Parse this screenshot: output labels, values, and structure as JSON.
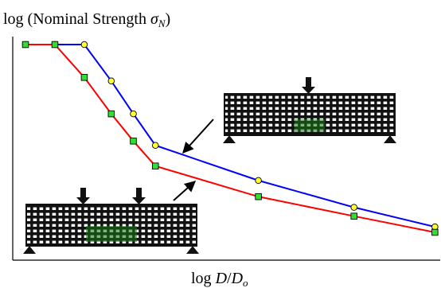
{
  "chart_data": {
    "type": "line",
    "ylabel_prefix": "log (Nominal Strength ",
    "ylabel_symbol": "σ",
    "ylabel_subscript": "N",
    "ylabel_suffix": ")",
    "xlabel_prefix": "log ",
    "xlabel_D": "D",
    "xlabel_slash": "/",
    "xlabel_Do": "D",
    "xlabel_Do_sub": "o",
    "grid": false,
    "legend": "none",
    "series": [
      {
        "color": "#0000ff",
        "marker": "circle",
        "marker_color": "#ffff33",
        "points": [
          [
            0.0,
            1.0
          ],
          [
            0.12,
            1.0
          ],
          [
            0.24,
            1.0
          ],
          [
            0.35,
            0.806
          ],
          [
            0.44,
            0.631
          ],
          [
            0.53,
            0.463
          ],
          [
            0.95,
            0.276
          ],
          [
            1.34,
            0.133
          ],
          [
            1.67,
            0.029
          ]
        ]
      },
      {
        "color": "#ff0000",
        "marker": "square",
        "marker_color": "#33dd33",
        "points": [
          [
            0.0,
            1.0
          ],
          [
            0.12,
            1.0
          ],
          [
            0.24,
            0.825
          ],
          [
            0.35,
            0.631
          ],
          [
            0.44,
            0.486
          ],
          [
            0.53,
            0.353
          ],
          [
            0.95,
            0.19
          ],
          [
            1.34,
            0.086
          ],
          [
            1.67,
            0.0
          ]
        ]
      }
    ],
    "annotations": [
      {
        "kind": "beam",
        "loading": "single-point",
        "pointer": "blue"
      },
      {
        "kind": "beam",
        "loading": "two-point",
        "pointer": "red"
      }
    ]
  }
}
